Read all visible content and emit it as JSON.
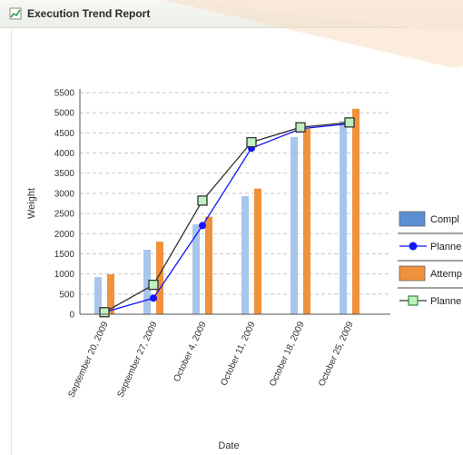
{
  "window": {
    "title": "Execution Trend Report",
    "icon": "chart-report-icon"
  },
  "chart_data": {
    "type": "bar",
    "categories": [
      "September 20, 2009",
      "September 27, 2009",
      "October 4, 2009",
      "October 11, 2009",
      "October 18, 2009",
      "October 25, 2009"
    ],
    "xlabel": "Date",
    "ylabel": "Weight",
    "ylim": [
      0,
      5500
    ],
    "yticks": [
      0,
      500,
      1000,
      1500,
      2000,
      2500,
      3000,
      3500,
      4000,
      4500,
      5000,
      5500
    ],
    "grid": true,
    "legend_position": "right",
    "series": [
      {
        "name": "Compl",
        "kind": "bar",
        "color": "#a8c6ec",
        "legend_color": "#5a8fd1",
        "values": [
          920,
          1600,
          2230,
          2930,
          4400,
          4800
        ]
      },
      {
        "name": "Planne",
        "kind": "line",
        "color": "#1414ff",
        "marker": "circle",
        "values": [
          50,
          400,
          2200,
          4120,
          4600,
          4730
        ]
      },
      {
        "name": "Attemp",
        "kind": "bar",
        "color": "#f0913b",
        "legend_color": "#f0913b",
        "values": [
          990,
          1800,
          2420,
          3120,
          4600,
          5100
        ]
      },
      {
        "name": "Planne",
        "kind": "line",
        "color": "#333333",
        "marker": "square",
        "marker_fill": "#bff0bf",
        "values": [
          50,
          730,
          2820,
          4270,
          4640,
          4760
        ]
      }
    ]
  }
}
